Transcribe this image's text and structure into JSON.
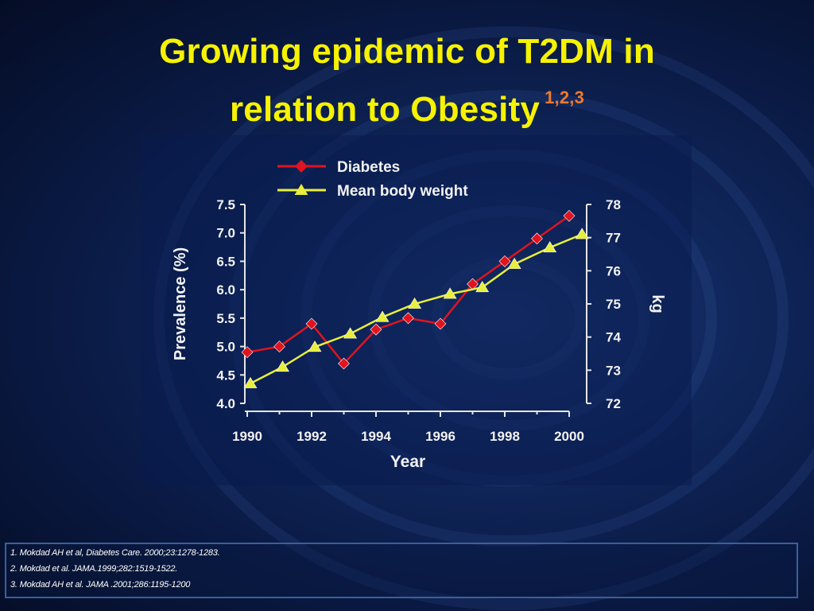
{
  "slide": {
    "title_line1": "Growing epidemic of T2DM in",
    "title_line2": "relation to Obesity",
    "title_superscript": "1,2,3"
  },
  "chart_data": {
    "type": "line",
    "title": "",
    "xlabel": "Year",
    "ylabel_left": "Prevalence (%)",
    "ylabel_right": "kg",
    "xlim": [
      1990,
      2000
    ],
    "ylim_left": [
      4.0,
      7.5
    ],
    "ylim_right": [
      72,
      78
    ],
    "x_ticks": [
      "1990",
      "1992",
      "1994",
      "1996",
      "1998",
      "2000"
    ],
    "y_ticks_left": [
      "4.0",
      "4.5",
      "5.0",
      "5.5",
      "6.0",
      "6.5",
      "7.0",
      "7.5"
    ],
    "y_ticks_right": [
      "72",
      "73",
      "74",
      "75",
      "76",
      "77",
      "78"
    ],
    "series": [
      {
        "name": "Diabetes",
        "axis": "left",
        "color": "#e0141e",
        "marker": "diamond",
        "x": [
          1990,
          1991,
          1992,
          1993,
          1994,
          1995,
          1996,
          1997,
          1998,
          1999,
          2000
        ],
        "values": [
          4.9,
          5.0,
          5.4,
          4.7,
          5.3,
          5.5,
          5.4,
          6.1,
          6.5,
          6.9,
          7.3
        ]
      },
      {
        "name": "Mean body weight",
        "axis": "right",
        "color": "#e8ee3a",
        "marker": "triangle",
        "x": [
          1990.1,
          1991.1,
          1992.1,
          1993.2,
          1994.2,
          1995.2,
          1996.3,
          1997.3,
          1998.3,
          1999.4,
          2000.4
        ],
        "values": [
          72.6,
          73.1,
          73.7,
          74.1,
          74.6,
          75.0,
          75.3,
          75.5,
          76.2,
          76.7,
          77.1
        ]
      }
    ],
    "legend_position": "top-left"
  },
  "references": [
    "1. Mokdad AH et al, Diabetes Care. 2000;23:1278-1283.",
    "2. Mokdad et al. JAMA.1999;282:1519-1522.",
    "3. Mokdad AH et al. JAMA .2001;286:1195-1200"
  ]
}
